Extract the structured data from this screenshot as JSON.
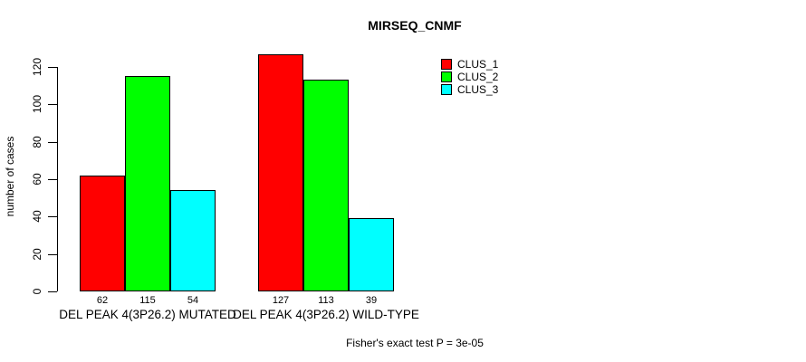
{
  "title": "MIRSEQ_CNMF",
  "footer": "Fisher's exact test P = 3e-05",
  "chart_data": {
    "type": "bar",
    "title": "MIRSEQ_CNMF",
    "xlabel": "",
    "ylabel": "number of cases",
    "categories": [
      "DEL PEAK 4(3P26.2) MUTATED",
      "DEL PEAK 4(3P26.2) WILD-TYPE"
    ],
    "series": [
      {
        "name": "CLUS_1",
        "color": "#ff0000",
        "values": [
          62,
          127
        ]
      },
      {
        "name": "CLUS_2",
        "color": "#00ff00",
        "values": [
          115,
          113
        ]
      },
      {
        "name": "CLUS_3",
        "color": "#00ffff",
        "values": [
          54,
          39
        ]
      }
    ],
    "bar_value_labels_shown": true,
    "yticks": [
      0,
      20,
      40,
      60,
      80,
      100,
      120
    ],
    "ylim": [
      0,
      130
    ],
    "grid": false,
    "legend": {
      "position": "top-right",
      "entries": [
        "CLUS_1",
        "CLUS_2",
        "CLUS_3"
      ],
      "colors": [
        "#ff0000",
        "#00ff00",
        "#00ffff"
      ]
    },
    "annotation": "Fisher's exact test P = 3e-05"
  }
}
